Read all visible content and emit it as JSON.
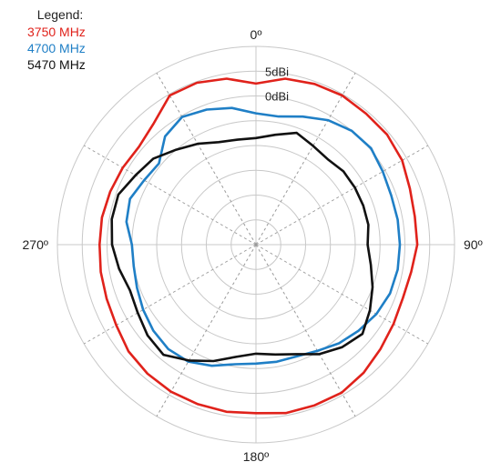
{
  "chart_data": {
    "type": "polar-line",
    "legend": {
      "title": "Legend:",
      "placement": "top-left",
      "entries": [
        {
          "label": "3750 MHz",
          "color": "#e0221b"
        },
        {
          "label": "4700 MHz",
          "color": "#1f7fc6"
        },
        {
          "label": "5470 MHz",
          "color": "#111111"
        }
      ]
    },
    "angle_labels": [
      {
        "deg": 0,
        "label": "0º"
      },
      {
        "deg": 90,
        "label": "90º"
      },
      {
        "deg": 180,
        "label": "180º"
      },
      {
        "deg": 270,
        "label": "270º"
      }
    ],
    "ring_labels": [
      "5dBi",
      "0dBi"
    ],
    "ring_count": 8,
    "ring_label_positions": [
      7,
      6
    ],
    "spokes_deg": [
      30,
      60,
      120,
      150,
      210,
      240,
      300,
      330
    ],
    "series": [
      {
        "name": "3750 MHz",
        "color": "#e0221b",
        "angles": [
          0,
          10,
          20,
          30,
          40,
          50,
          60,
          70,
          80,
          90,
          100,
          110,
          120,
          130,
          140,
          150,
          160,
          170,
          180,
          190,
          200,
          210,
          220,
          230,
          240,
          250,
          260,
          270,
          280,
          290,
          300,
          310,
          320,
          330,
          340,
          350
        ],
        "r": [
          6.5,
          6.8,
          6.9,
          6.95,
          6.9,
          6.9,
          6.8,
          6.6,
          6.5,
          6.5,
          6.35,
          6.3,
          6.4,
          6.55,
          6.75,
          6.9,
          6.9,
          6.9,
          6.8,
          6.85,
          6.85,
          6.85,
          6.8,
          6.7,
          6.5,
          6.4,
          6.35,
          6.3,
          6.3,
          6.25,
          6.2,
          6.15,
          6.4,
          6.95,
          6.95,
          6.8
        ]
      },
      {
        "name": "4700 MHz",
        "color": "#1f7fc6",
        "angles": [
          0,
          10,
          20,
          30,
          40,
          50,
          60,
          70,
          80,
          90,
          100,
          110,
          120,
          130,
          140,
          150,
          160,
          170,
          180,
          190,
          200,
          210,
          220,
          230,
          240,
          250,
          260,
          270,
          280,
          290,
          300,
          310,
          320,
          330,
          340,
          350
        ],
        "r": [
          5.3,
          5.25,
          5.5,
          5.8,
          6.0,
          6.05,
          5.9,
          5.8,
          5.8,
          5.8,
          5.8,
          5.75,
          5.6,
          5.4,
          5.2,
          4.95,
          4.8,
          4.8,
          4.8,
          4.9,
          5.2,
          5.45,
          5.5,
          5.4,
          5.25,
          5.1,
          5.0,
          5.0,
          5.3,
          5.4,
          5.2,
          5.1,
          5.7,
          5.95,
          5.8,
          5.6
        ]
      },
      {
        "name": "5470 MHz",
        "color": "#111111",
        "angles": [
          0,
          10,
          20,
          30,
          40,
          50,
          60,
          70,
          80,
          90,
          100,
          110,
          120,
          130,
          140,
          150,
          160,
          170,
          180,
          190,
          200,
          210,
          220,
          230,
          240,
          250,
          260,
          270,
          280,
          290,
          300,
          310,
          320,
          330,
          340,
          350
        ],
        "r": [
          4.3,
          4.5,
          4.8,
          4.6,
          4.5,
          4.6,
          4.6,
          4.6,
          4.6,
          4.5,
          4.7,
          5.0,
          5.3,
          5.6,
          5.4,
          5.1,
          4.7,
          4.5,
          4.4,
          4.6,
          5.0,
          5.4,
          5.8,
          5.7,
          5.5,
          5.4,
          5.6,
          5.8,
          5.9,
          5.9,
          5.6,
          5.4,
          5.0,
          4.7,
          4.4,
          4.3
        ]
      }
    ]
  }
}
